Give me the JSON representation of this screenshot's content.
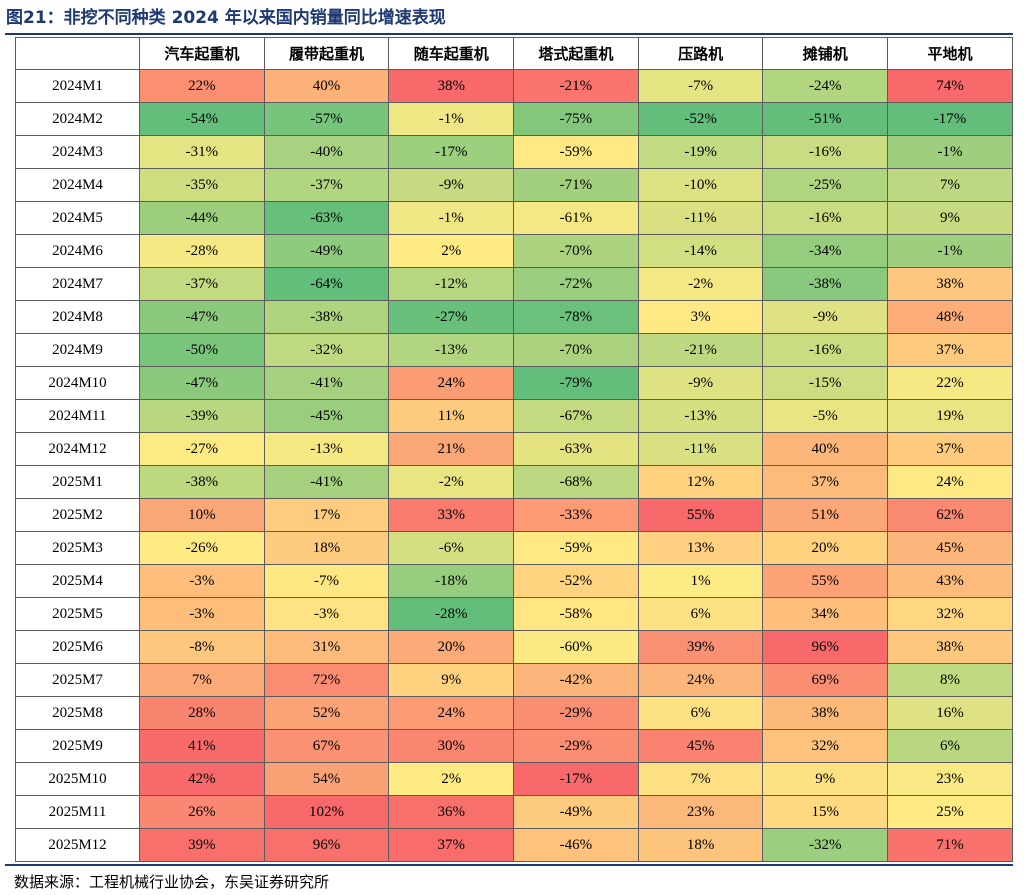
{
  "title": "图21：非挖不同种类 2024 年以来国内销量同比增速表现",
  "source": "数据来源：工程机械行业协会，东吴证券研究所",
  "table": {
    "columns": [
      "",
      "汽车起重机",
      "履带起重机",
      "随车起重机",
      "塔式起重机",
      "压路机",
      "摊铺机",
      "平地机"
    ],
    "rows": [
      {
        "label": "2024M1",
        "values": [
          "22%",
          "40%",
          "38%",
          "-21%",
          "-7%",
          "-24%",
          "74%"
        ]
      },
      {
        "label": "2024M2",
        "values": [
          "-54%",
          "-57%",
          "-1%",
          "-75%",
          "-52%",
          "-51%",
          "-17%"
        ]
      },
      {
        "label": "2024M3",
        "values": [
          "-31%",
          "-40%",
          "-17%",
          "-59%",
          "-19%",
          "-16%",
          "-1%"
        ]
      },
      {
        "label": "2024M4",
        "values": [
          "-35%",
          "-37%",
          "-9%",
          "-71%",
          "-10%",
          "-25%",
          "7%"
        ]
      },
      {
        "label": "2024M5",
        "values": [
          "-44%",
          "-63%",
          "-1%",
          "-61%",
          "-11%",
          "-16%",
          "9%"
        ]
      },
      {
        "label": "2024M6",
        "values": [
          "-28%",
          "-49%",
          "2%",
          "-70%",
          "-14%",
          "-34%",
          "-1%"
        ]
      },
      {
        "label": "2024M7",
        "values": [
          "-37%",
          "-64%",
          "-12%",
          "-72%",
          "-2%",
          "-38%",
          "38%"
        ]
      },
      {
        "label": "2024M8",
        "values": [
          "-47%",
          "-38%",
          "-27%",
          "-78%",
          "3%",
          "-9%",
          "48%"
        ]
      },
      {
        "label": "2024M9",
        "values": [
          "-50%",
          "-32%",
          "-13%",
          "-70%",
          "-21%",
          "-16%",
          "37%"
        ]
      },
      {
        "label": "2024M10",
        "values": [
          "-47%",
          "-41%",
          "24%",
          "-79%",
          "-9%",
          "-15%",
          "22%"
        ]
      },
      {
        "label": "2024M11",
        "values": [
          "-39%",
          "-45%",
          "11%",
          "-67%",
          "-13%",
          "-5%",
          "19%"
        ]
      },
      {
        "label": "2024M12",
        "values": [
          "-27%",
          "-13%",
          "21%",
          "-63%",
          "-11%",
          "40%",
          "37%"
        ]
      },
      {
        "label": "2025M1",
        "values": [
          "-38%",
          "-41%",
          "-2%",
          "-68%",
          "12%",
          "37%",
          "24%"
        ]
      },
      {
        "label": "2025M2",
        "values": [
          "10%",
          "17%",
          "33%",
          "-33%",
          "55%",
          "51%",
          "62%"
        ]
      },
      {
        "label": "2025M3",
        "values": [
          "-26%",
          "18%",
          "-6%",
          "-59%",
          "13%",
          "20%",
          "45%"
        ]
      },
      {
        "label": "2025M4",
        "values": [
          "-3%",
          "-7%",
          "-18%",
          "-52%",
          "1%",
          "55%",
          "43%"
        ]
      },
      {
        "label": "2025M5",
        "values": [
          "-3%",
          "-3%",
          "-28%",
          "-58%",
          "6%",
          "34%",
          "32%"
        ]
      },
      {
        "label": "2025M6",
        "values": [
          "-8%",
          "31%",
          "20%",
          "-60%",
          "39%",
          "96%",
          "38%"
        ]
      },
      {
        "label": "2025M7",
        "values": [
          "7%",
          "72%",
          "9%",
          "-42%",
          "24%",
          "69%",
          "8%"
        ]
      },
      {
        "label": "2025M8",
        "values": [
          "28%",
          "52%",
          "24%",
          "-29%",
          "6%",
          "38%",
          "16%"
        ]
      },
      {
        "label": "2025M9",
        "values": [
          "41%",
          "67%",
          "30%",
          "-29%",
          "45%",
          "32%",
          "6%"
        ]
      },
      {
        "label": "2025M10",
        "values": [
          "42%",
          "54%",
          "2%",
          "-17%",
          "7%",
          "9%",
          "23%"
        ]
      },
      {
        "label": "2025M11",
        "values": [
          "26%",
          "102%",
          "36%",
          "-49%",
          "23%",
          "15%",
          "25%"
        ]
      },
      {
        "label": "2025M12",
        "values": [
          "39%",
          "96%",
          "37%",
          "-46%",
          "18%",
          "-32%",
          "71%"
        ]
      }
    ]
  },
  "colors": {
    "title": "#1f3a73",
    "scale_min": "#63be7b",
    "scale_mid": "#ffeb84",
    "scale_max": "#f8696b"
  }
}
